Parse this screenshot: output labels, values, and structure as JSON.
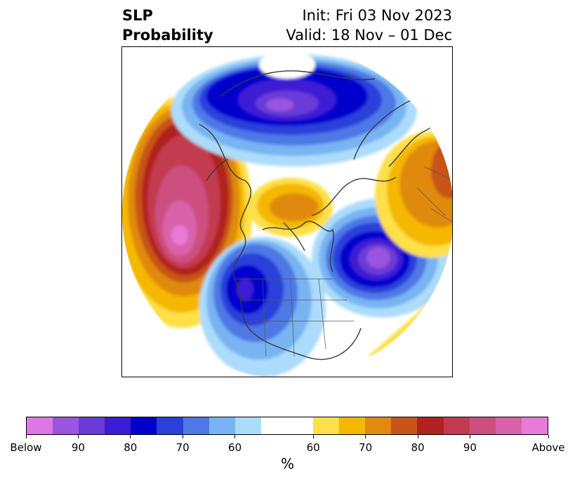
{
  "title": {
    "left": "SLP\nProbability",
    "init": "Init: Fri 03 Nov 2023",
    "valid": "Valid: 18 Nov – 01 Dec"
  },
  "colorbar": {
    "colors": [
      "#dd77e6",
      "#9955dd",
      "#6a3bd8",
      "#3c1cd4",
      "#0000cc",
      "#2a3fdb",
      "#4d78e6",
      "#78b4f2",
      "#acdcfb",
      "#ffffff",
      "#ffffff",
      "#ffe04a",
      "#f5b800",
      "#e08a10",
      "#c85518",
      "#b0221f",
      "#c23a50",
      "#cc4f80",
      "#d962aa",
      "#e87ad8"
    ],
    "tick_labels": [
      "Below",
      "90",
      "80",
      "70",
      "60",
      "60",
      "70",
      "80",
      "90",
      "Above"
    ],
    "unit": "%"
  },
  "map": {
    "projection": "north-polar-stereographic",
    "features": [
      {
        "name": "gulf-of-alaska-high",
        "sign": "above",
        "peak": "Above"
      },
      {
        "name": "arctic-siberia-low",
        "sign": "below",
        "peak": "90"
      },
      {
        "name": "central-canada-low",
        "sign": "below",
        "peak": "80"
      },
      {
        "name": "north-atlantic-low",
        "sign": "below",
        "peak": "90"
      },
      {
        "name": "europe-high",
        "sign": "above",
        "peak": "70"
      },
      {
        "name": "greenland-high",
        "sign": "above",
        "peak": "70"
      },
      {
        "name": "east-atlantic-high",
        "sign": "above",
        "peak": "70"
      }
    ]
  }
}
